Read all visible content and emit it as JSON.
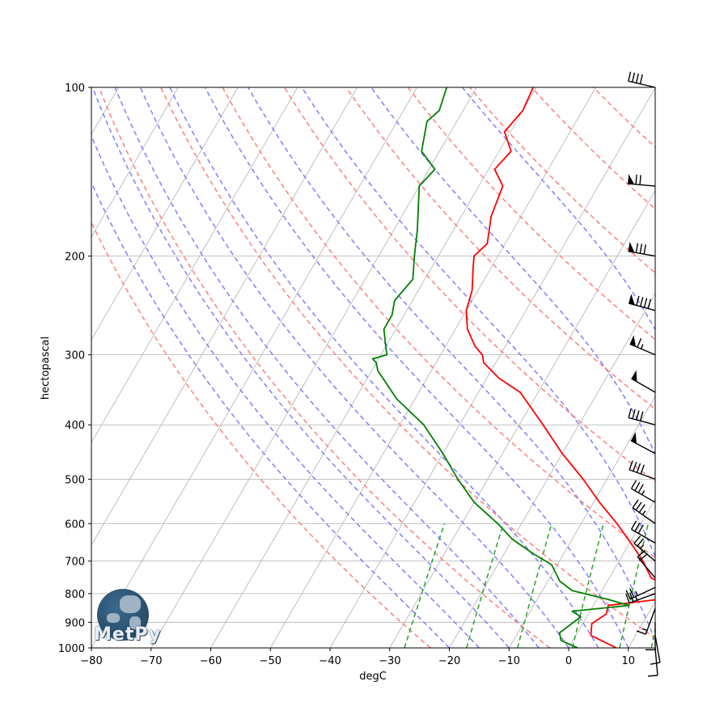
{
  "chart_data": {
    "type": "line",
    "title": "",
    "xlabel": "degC",
    "ylabel": "hectopascal",
    "xlim": [
      -80,
      14.5
    ],
    "ylim": [
      1000,
      100
    ],
    "y_scale": "log",
    "skew": 30,
    "grid": true,
    "x_ticks": [
      -80,
      -70,
      -60,
      -50,
      -40,
      -30,
      -20,
      -10,
      0,
      10
    ],
    "y_ticks": [
      1000,
      900,
      800,
      700,
      600,
      500,
      400,
      300,
      200,
      100
    ],
    "series": [
      {
        "color": "#ff0000",
        "pressure": [
          1000,
          950,
          905,
          870,
          840,
          820,
          800,
          780,
          750,
          700,
          660,
          600,
          550,
          500,
          450,
          400,
          350,
          330,
          310,
          300,
          290,
          270,
          250,
          230,
          210,
          200,
          190,
          170,
          150,
          140,
          130,
          120,
          110,
          100
        ],
        "values": [
          8,
          2.5,
          1.5,
          3,
          2.5,
          10,
          14,
          11,
          7,
          4,
          1,
          -4,
          -9,
          -14,
          -20,
          -26,
          -33,
          -38,
          -42,
          -43,
          -45,
          -48,
          -50,
          -51,
          -53,
          -54,
          -53,
          -55,
          -56,
          -59,
          -58,
          -61,
          -60,
          -60.5
        ]
      },
      {
        "color": "#008000",
        "pressure": [
          1000,
          970,
          940,
          880,
          860,
          840,
          820,
          790,
          760,
          710,
          680,
          640,
          600,
          550,
          500,
          450,
          400,
          360,
          320,
          310,
          305,
          300,
          290,
          270,
          255,
          240,
          220,
          200,
          180,
          150,
          140,
          130,
          115,
          110,
          100
        ],
        "values": [
          1.5,
          -2,
          -3,
          -1,
          -3,
          6,
          2,
          -5,
          -8,
          -11,
          -15,
          -20,
          -24,
          -30,
          -35,
          -40,
          -46,
          -53,
          -59,
          -60,
          -61,
          -59,
          -60,
          -62,
          -62,
          -63,
          -62,
          -64,
          -66,
          -70,
          -69,
          -73,
          -75,
          -74,
          -75
        ]
      }
    ],
    "dry_adiabats_K": [
      250,
      270,
      290,
      310,
      330,
      350,
      370,
      390,
      410,
      430
    ],
    "moist_adiabats_degC": [
      -20,
      -15,
      -10,
      -5,
      0,
      5,
      10,
      15,
      20,
      25,
      30
    ],
    "mixing_ratios": [
      0.0004,
      0.001,
      0.002,
      0.004,
      0.007,
      0.01
    ],
    "wind_barbs": [
      {
        "pressure": 100,
        "speed_kt": 40,
        "direction_deg": 283
      },
      {
        "pressure": 150,
        "speed_kt": 70,
        "direction_deg": 275
      },
      {
        "pressure": 200,
        "speed_kt": 80,
        "direction_deg": 280
      },
      {
        "pressure": 250,
        "speed_kt": 90,
        "direction_deg": 285
      },
      {
        "pressure": 300,
        "speed_kt": 65,
        "direction_deg": 293
      },
      {
        "pressure": 350,
        "speed_kt": 50,
        "direction_deg": 300
      },
      {
        "pressure": 400,
        "speed_kt": 40,
        "direction_deg": 285
      },
      {
        "pressure": 450,
        "speed_kt": 50,
        "direction_deg": 298
      },
      {
        "pressure": 500,
        "speed_kt": 40,
        "direction_deg": 290
      },
      {
        "pressure": 550,
        "speed_kt": 35,
        "direction_deg": 300
      },
      {
        "pressure": 600,
        "speed_kt": 35,
        "direction_deg": 305
      },
      {
        "pressure": 650,
        "speed_kt": 30,
        "direction_deg": 300
      },
      {
        "pressure": 700,
        "speed_kt": 25,
        "direction_deg": 310
      },
      {
        "pressure": 750,
        "speed_kt": 20,
        "direction_deg": 320
      },
      {
        "pressure": 780,
        "speed_kt": 25,
        "direction_deg": 245
      },
      {
        "pressure": 800,
        "speed_kt": 25,
        "direction_deg": 250
      },
      {
        "pressure": 850,
        "speed_kt": 15,
        "direction_deg": 200
      },
      {
        "pressure": 900,
        "speed_kt": 10,
        "direction_deg": 180
      },
      {
        "pressure": 950,
        "speed_kt": 10,
        "direction_deg": 170
      },
      {
        "pressure": 1000,
        "speed_kt": 10,
        "direction_deg": 175
      }
    ]
  },
  "logo": {
    "text": "MetPy"
  },
  "colors": {
    "dry_adiabat": "#ff7f7f",
    "moist_adiabat": "#7f7fff",
    "mixing_ratio": "#2ca02c",
    "isotherm_grid": "#b0b0b0",
    "temperature": "#ff0000",
    "dewpoint": "#008000",
    "logo_dark": "#1f3f5a"
  }
}
